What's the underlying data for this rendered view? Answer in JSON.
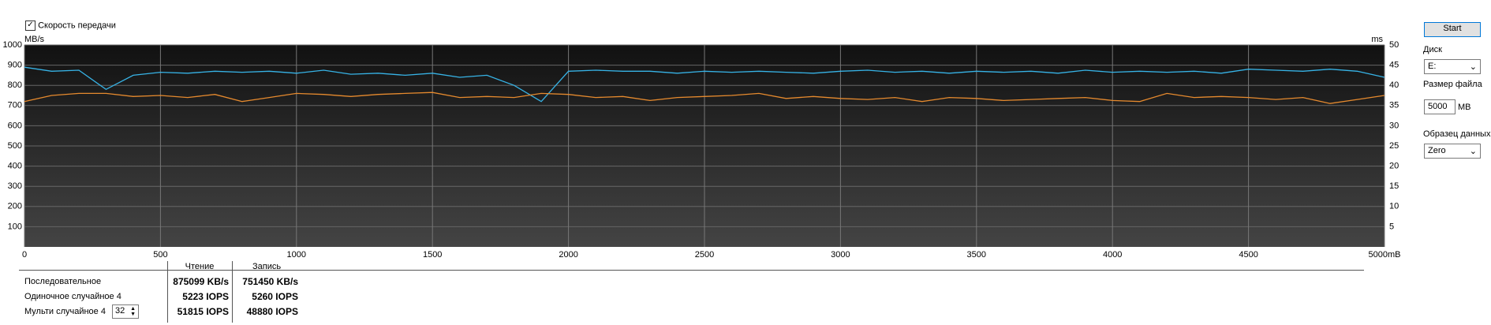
{
  "controls": {
    "transfer_checkbox": "Скорость передачи",
    "start_button": "Start",
    "disk_label": "Диск",
    "disk_value": "E:",
    "file_size_label": "Размер файла",
    "file_size_value": "5000",
    "file_size_unit": "MB",
    "pattern_label": "Образец данных",
    "pattern_value": "Zero"
  },
  "chart_data": {
    "type": "line",
    "y_label": "MB/s",
    "y2_label": "ms",
    "x": [
      0,
      100,
      200,
      300,
      400,
      500,
      600,
      700,
      800,
      900,
      1000,
      1100,
      1200,
      1300,
      1400,
      1500,
      1600,
      1700,
      1800,
      1900,
      2000,
      2100,
      2200,
      2300,
      2400,
      2500,
      2600,
      2700,
      2800,
      2900,
      3000,
      3100,
      3200,
      3300,
      3400,
      3500,
      3600,
      3700,
      3800,
      3900,
      4000,
      4100,
      4200,
      4300,
      4400,
      4500,
      4600,
      4700,
      4800,
      4900,
      5000
    ],
    "series": [
      {
        "color": "#37b3e6",
        "values": [
          890,
          870,
          875,
          780,
          850,
          865,
          860,
          870,
          865,
          870,
          860,
          875,
          855,
          860,
          850,
          860,
          840,
          850,
          800,
          720,
          870,
          875,
          870,
          870,
          860,
          870,
          865,
          870,
          865,
          860,
          870,
          875,
          865,
          870,
          860,
          870,
          865,
          870,
          860,
          875,
          865,
          870,
          865,
          870,
          860,
          880,
          875,
          870,
          880,
          870,
          840
        ]
      },
      {
        "color": "#e68a2e",
        "values": [
          720,
          750,
          760,
          760,
          745,
          750,
          740,
          755,
          720,
          740,
          760,
          755,
          745,
          755,
          760,
          765,
          740,
          745,
          740,
          760,
          755,
          740,
          745,
          725,
          740,
          745,
          750,
          760,
          735,
          745,
          735,
          730,
          740,
          720,
          740,
          735,
          725,
          730,
          735,
          740,
          725,
          720,
          760,
          740,
          745,
          740,
          730,
          740,
          710,
          730,
          750
        ]
      }
    ],
    "xlim": [
      0,
      5000
    ],
    "xticks": [
      0,
      500,
      1000,
      1500,
      2000,
      2500,
      3000,
      3500,
      4000,
      4500,
      {
        "value": 5000,
        "label": "5000mB"
      }
    ],
    "ylim": [
      0,
      1000
    ],
    "yticks": [
      100,
      200,
      300,
      400,
      500,
      600,
      700,
      800,
      900,
      1000
    ],
    "y2lim": [
      0,
      50
    ],
    "y2ticks": [
      5,
      10,
      15,
      20,
      25,
      30,
      35,
      40,
      45,
      50
    ],
    "grid": true
  },
  "results": {
    "headers": [
      "Чтение",
      "Запись"
    ],
    "rows": [
      [
        "Последовательное",
        "875099 KB/s",
        "751450 KB/s"
      ],
      [
        "Одиночное случайное 4",
        "5223 IOPS",
        "5260 IOPS"
      ],
      [
        "Мульти случайное 4",
        "51815 IOPS",
        "48880 IOPS"
      ]
    ],
    "queue_depth": "32"
  }
}
